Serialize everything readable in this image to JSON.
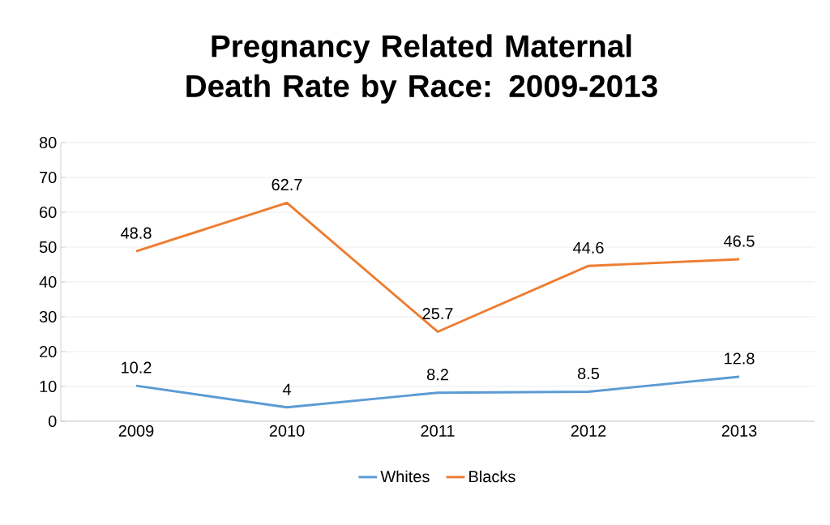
{
  "chart_data": {
    "type": "line",
    "title": "Pregnancy  Related Maternal Death Rate by Race: 2009-2013",
    "categories": [
      "2009",
      "2010",
      "2011",
      "2012",
      "2013"
    ],
    "series": [
      {
        "name": "Whites",
        "color": "#5b9bd5",
        "values": [
          10.2,
          4,
          8.2,
          8.5,
          12.8
        ],
        "value_labels": [
          "10.2",
          "4",
          "8.2",
          "8.5",
          "12.8"
        ]
      },
      {
        "name": "Blacks",
        "color": "#ed7d31",
        "values": [
          48.8,
          62.7,
          25.7,
          44.6,
          46.5
        ],
        "value_labels": [
          "48.8",
          "62.7",
          "25.7",
          "44.6",
          "46.5"
        ]
      }
    ],
    "ylim": [
      0,
      80
    ],
    "yticks": [
      0,
      10,
      20,
      30,
      40,
      50,
      60,
      70,
      80
    ],
    "grid": "y",
    "legend": "bottom",
    "marker": "none",
    "line_style": "solid"
  }
}
